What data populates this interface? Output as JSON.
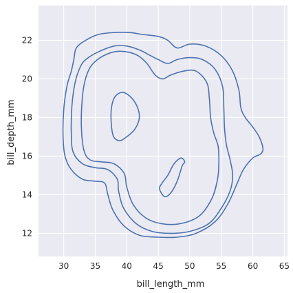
{
  "chart_data": {
    "type": "kde_contour",
    "xlabel": "bill_length_mm",
    "ylabel": "bill_depth_mm",
    "xlim": [
      26.0,
      65.5
    ],
    "ylim": [
      10.8,
      23.8
    ],
    "xticks": [
      30,
      35,
      40,
      45,
      50,
      55,
      60,
      65
    ],
    "yticks": [
      12,
      14,
      16,
      18,
      20,
      22
    ],
    "grid": true,
    "colors": {
      "background": "#EAEAF2",
      "grid": "#FFFFFF",
      "line": "#4C72B0",
      "text": "#262626"
    },
    "contours": [
      {
        "level": 1,
        "points": [
          [
            30.2,
            16.0
          ],
          [
            29.9,
            17.0
          ],
          [
            30.0,
            18.4
          ],
          [
            30.5,
            19.6
          ],
          [
            31.2,
            20.4
          ],
          [
            31.6,
            21.0
          ],
          [
            32.0,
            21.6
          ],
          [
            33.5,
            22.0
          ],
          [
            35.5,
            22.3
          ],
          [
            38.0,
            22.4
          ],
          [
            40.5,
            22.4
          ],
          [
            42.5,
            22.3
          ],
          [
            45.0,
            22.2
          ],
          [
            46.5,
            22.0
          ],
          [
            48.0,
            21.6
          ],
          [
            50.0,
            21.8
          ],
          [
            52.5,
            21.7
          ],
          [
            55.0,
            21.2
          ],
          [
            56.8,
            20.4
          ],
          [
            57.8,
            19.4
          ],
          [
            58.1,
            18.5
          ],
          [
            58.8,
            18.0
          ],
          [
            60.0,
            17.5
          ],
          [
            61.0,
            17.0
          ],
          [
            61.6,
            16.4
          ],
          [
            61.2,
            16.1
          ],
          [
            60.0,
            15.9
          ],
          [
            58.5,
            15.3
          ],
          [
            57.4,
            14.5
          ],
          [
            56.0,
            13.5
          ],
          [
            54.0,
            12.6
          ],
          [
            51.0,
            12.0
          ],
          [
            48.0,
            11.8
          ],
          [
            45.0,
            11.8
          ],
          [
            42.0,
            11.9
          ],
          [
            39.5,
            12.4
          ],
          [
            37.8,
            13.2
          ],
          [
            37.0,
            14.0
          ],
          [
            36.5,
            14.6
          ],
          [
            35.0,
            14.7
          ],
          [
            33.0,
            14.8
          ],
          [
            31.2,
            15.3
          ],
          [
            30.2,
            16.0
          ]
        ]
      },
      {
        "level": 2,
        "points": [
          [
            31.5,
            16.2
          ],
          [
            31.2,
            17.2
          ],
          [
            31.3,
            18.6
          ],
          [
            31.8,
            19.8
          ],
          [
            32.6,
            20.6
          ],
          [
            33.5,
            21.0
          ],
          [
            35.5,
            21.4
          ],
          [
            38.0,
            21.7
          ],
          [
            40.0,
            21.7
          ],
          [
            42.0,
            21.5
          ],
          [
            43.8,
            21.2
          ],
          [
            45.0,
            21.0
          ],
          [
            46.5,
            20.8
          ],
          [
            48.0,
            21.0
          ],
          [
            50.0,
            21.1
          ],
          [
            52.0,
            21.0
          ],
          [
            54.0,
            20.5
          ],
          [
            55.2,
            19.6
          ],
          [
            55.4,
            18.5
          ],
          [
            55.5,
            17.5
          ],
          [
            55.8,
            16.6
          ],
          [
            56.4,
            15.8
          ],
          [
            56.8,
            15.0
          ],
          [
            56.4,
            14.2
          ],
          [
            55.0,
            13.3
          ],
          [
            53.0,
            12.5
          ],
          [
            50.0,
            12.1
          ],
          [
            47.0,
            12.0
          ],
          [
            44.0,
            12.1
          ],
          [
            41.5,
            12.5
          ],
          [
            39.5,
            13.3
          ],
          [
            38.7,
            14.2
          ],
          [
            38.5,
            14.8
          ],
          [
            37.0,
            15.3
          ],
          [
            35.0,
            15.4
          ],
          [
            33.0,
            15.6
          ],
          [
            31.5,
            16.2
          ]
        ]
      },
      {
        "level": 3,
        "points": [
          [
            33.2,
            16.3
          ],
          [
            32.8,
            17.5
          ],
          [
            32.9,
            18.8
          ],
          [
            33.3,
            19.8
          ],
          [
            34.2,
            20.6
          ],
          [
            35.8,
            21.1
          ],
          [
            38.0,
            21.4
          ],
          [
            40.0,
            21.4
          ],
          [
            41.8,
            21.2
          ],
          [
            43.2,
            20.8
          ],
          [
            44.5,
            20.2
          ],
          [
            45.7,
            20.0
          ],
          [
            47.0,
            20.2
          ],
          [
            49.0,
            20.4
          ],
          [
            51.0,
            20.4
          ],
          [
            52.7,
            19.8
          ],
          [
            53.1,
            19.0
          ],
          [
            53.3,
            18.0
          ],
          [
            53.8,
            17.2
          ],
          [
            54.5,
            16.5
          ],
          [
            54.6,
            15.6
          ],
          [
            54.4,
            14.8
          ],
          [
            53.5,
            13.8
          ],
          [
            51.5,
            12.9
          ],
          [
            48.5,
            12.5
          ],
          [
            45.5,
            12.5
          ],
          [
            43.0,
            12.8
          ],
          [
            41.0,
            13.5
          ],
          [
            40.0,
            14.4
          ],
          [
            39.6,
            15.1
          ],
          [
            38.0,
            15.6
          ],
          [
            36.0,
            15.7
          ],
          [
            34.2,
            15.8
          ],
          [
            33.2,
            16.3
          ]
        ]
      },
      {
        "level": 4,
        "points": [
          [
            37.5,
            18.2
          ],
          [
            38.0,
            19.0
          ],
          [
            39.2,
            19.3
          ],
          [
            40.5,
            19.1
          ],
          [
            41.6,
            18.6
          ],
          [
            42.0,
            18.0
          ],
          [
            41.3,
            17.4
          ],
          [
            40.0,
            17.0
          ],
          [
            38.8,
            16.8
          ],
          [
            37.8,
            17.1
          ],
          [
            37.5,
            18.2
          ]
        ]
      },
      {
        "level": 4,
        "points": [
          [
            45.2,
            14.3
          ],
          [
            46.0,
            13.9
          ],
          [
            47.0,
            14.1
          ],
          [
            48.0,
            14.7
          ],
          [
            48.8,
            15.5
          ],
          [
            49.2,
            15.7
          ],
          [
            48.6,
            15.9
          ],
          [
            47.5,
            15.6
          ],
          [
            46.5,
            15.0
          ],
          [
            45.6,
            14.6
          ],
          [
            45.2,
            14.3
          ]
        ]
      }
    ]
  }
}
